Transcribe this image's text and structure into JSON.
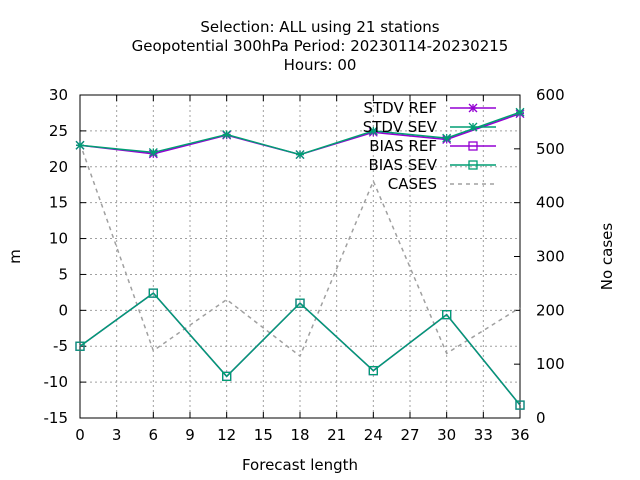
{
  "chart_data": {
    "type": "line",
    "title_lines": [
      "Selection: ALL using    21 stations",
      "Geopotential 300hPa   Period: 20230114-20230215",
      "Hours:  00"
    ],
    "xlabel": "Forecast length",
    "ylabel": "m",
    "y2label": "No cases",
    "xlim": [
      0,
      36
    ],
    "ylim": [
      -15,
      30
    ],
    "y2lim": [
      0,
      600
    ],
    "xticks": [
      0,
      3,
      6,
      9,
      12,
      15,
      18,
      21,
      24,
      27,
      30,
      33,
      36
    ],
    "yticks": [
      -15,
      -10,
      -5,
      0,
      5,
      10,
      15,
      20,
      25,
      30
    ],
    "y2ticks": [
      0,
      100,
      200,
      300,
      400,
      500,
      600
    ],
    "grid": true,
    "legend_position": "top-right",
    "x": [
      0,
      6,
      12,
      18,
      24,
      30,
      36
    ],
    "series": [
      {
        "name": "STDV REF",
        "axis": "y",
        "color": "#9400d3",
        "marker": "star",
        "dashed": false,
        "values": [
          23.0,
          21.8,
          24.4,
          21.7,
          24.8,
          23.8,
          27.4
        ]
      },
      {
        "name": "STDV SEV",
        "axis": "y",
        "color": "#009e73",
        "marker": "star",
        "dashed": false,
        "values": [
          23.0,
          22.0,
          24.5,
          21.7,
          25.0,
          24.0,
          27.6
        ]
      },
      {
        "name": "BIAS REF",
        "axis": "y",
        "color": "#9400d3",
        "marker": "square",
        "dashed": false,
        "values": [
          -5.0,
          2.4,
          -9.2,
          1.0,
          -8.4,
          -0.6,
          -13.2
        ]
      },
      {
        "name": "BIAS SEV",
        "axis": "y",
        "color": "#009e73",
        "marker": "square",
        "dashed": false,
        "values": [
          -5.0,
          2.4,
          -9.2,
          1.0,
          -8.4,
          -0.6,
          -13.2
        ]
      },
      {
        "name": "CASES",
        "axis": "y2",
        "color": "#a0a0a0",
        "marker": "none",
        "dashed": true,
        "values": [
          510,
          125,
          220,
          115,
          440,
          120,
          205
        ]
      }
    ]
  }
}
